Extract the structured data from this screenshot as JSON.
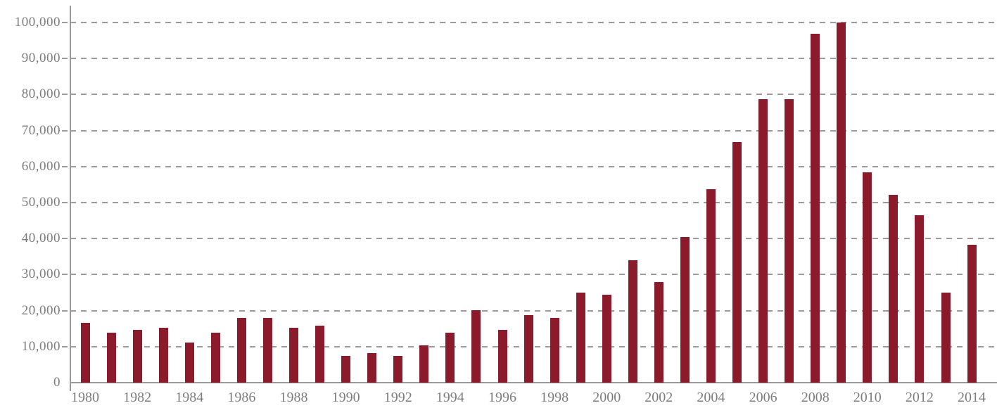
{
  "chart_data": {
    "type": "bar",
    "title": "",
    "xlabel": "",
    "ylabel": "",
    "categories": [
      1980,
      1981,
      1982,
      1983,
      1984,
      1985,
      1986,
      1987,
      1988,
      1989,
      1990,
      1991,
      1992,
      1993,
      1994,
      1995,
      1996,
      1997,
      1998,
      1999,
      2000,
      2001,
      2002,
      2003,
      2004,
      2005,
      2006,
      2007,
      2008,
      2009,
      2010,
      2011,
      2012,
      2013,
      2014
    ],
    "values": [
      16700,
      13900,
      14600,
      15200,
      11100,
      13900,
      18000,
      18000,
      15200,
      15800,
      7400,
      8300,
      7400,
      10400,
      13900,
      20100,
      14600,
      18700,
      18000,
      25000,
      24400,
      34000,
      27900,
      40400,
      53700,
      66900,
      78700,
      78700,
      96800,
      100000,
      58400,
      52100,
      46500,
      25100,
      38200
    ],
    "ylim": [
      0,
      100000
    ],
    "y_step": 10000,
    "y_tick_labels": [
      "0",
      "10,000",
      "20,000",
      "30,000",
      "40,000",
      "50,000",
      "60,000",
      "70,000",
      "80,000",
      "90,000",
      "100,000"
    ],
    "x_tick_labels": [
      "1980",
      "1982",
      "1984",
      "1986",
      "1988",
      "1990",
      "1992",
      "1994",
      "1996",
      "1998",
      "2000",
      "2002",
      "2004",
      "2006",
      "2008",
      "2010",
      "2012",
      "2014"
    ],
    "grid": "horizontal-dashed",
    "legend": "none",
    "bar_color": "#8B1A2B",
    "grid_color": "#9B9B9B",
    "axis_color": "#9A9A9A",
    "label_color": "#7D7D7D"
  }
}
